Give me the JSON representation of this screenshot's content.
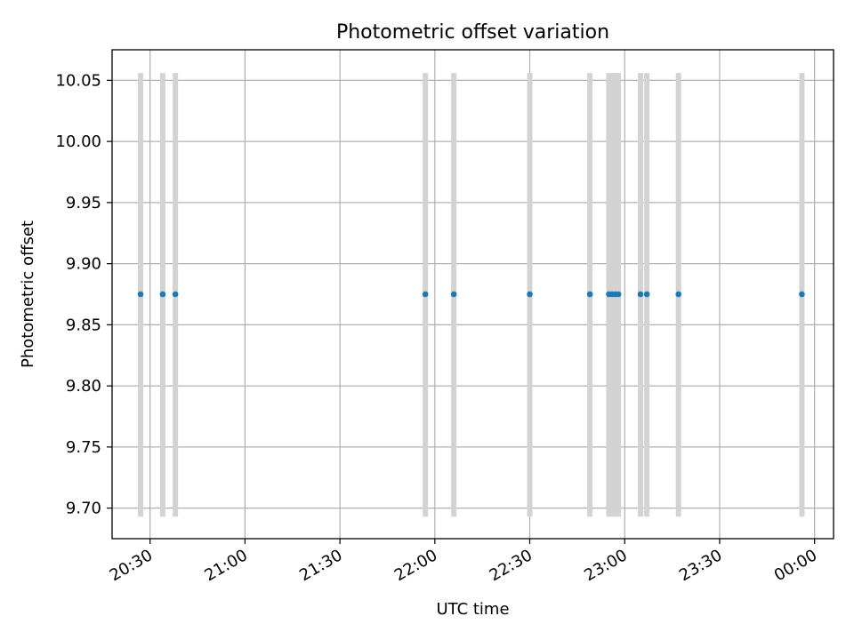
{
  "chart_data": {
    "type": "scatter",
    "title": "Photometric offset variation",
    "xlabel": "UTC time",
    "ylabel": "Photometric offset",
    "x_unit": "UTC time (HH:MM)",
    "xlim": [
      "20:18",
      "00:06"
    ],
    "ylim": [
      9.675,
      10.075
    ],
    "x_ticks": [
      "20:30",
      "21:00",
      "21:30",
      "22:00",
      "22:30",
      "23:00",
      "23:30",
      "00:00"
    ],
    "y_ticks": [
      9.7,
      9.75,
      9.8,
      9.85,
      9.9,
      9.95,
      10.0,
      10.05
    ],
    "y_tick_labels": [
      "9.70",
      "9.75",
      "9.80",
      "9.85",
      "9.90",
      "9.95",
      "10.00",
      "10.05"
    ],
    "grid": true,
    "x_tick_rotation_deg": 30,
    "series": [
      {
        "x": [
          "20:27",
          "20:34",
          "20:38",
          "21:57",
          "22:06",
          "22:30",
          "22:49",
          "22:55",
          "22:56",
          "22:57",
          "22:58",
          "23:05",
          "23:07",
          "23:17",
          "23:56"
        ],
        "y": [
          9.875,
          9.875,
          9.875,
          9.875,
          9.875,
          9.875,
          9.875,
          9.875,
          9.875,
          9.875,
          9.875,
          9.875,
          9.875,
          9.875,
          9.875
        ],
        "y_range": [
          [
            9.693,
            10.056
          ],
          [
            9.693,
            10.056
          ],
          [
            9.693,
            10.056
          ],
          [
            9.693,
            10.056
          ],
          [
            9.693,
            10.056
          ],
          [
            9.693,
            10.056
          ],
          [
            9.693,
            10.056
          ],
          [
            9.693,
            10.056
          ],
          [
            9.693,
            10.056
          ],
          [
            9.693,
            10.056
          ],
          [
            9.693,
            10.056
          ],
          [
            9.693,
            10.056
          ],
          [
            9.693,
            10.056
          ],
          [
            9.693,
            10.056
          ],
          [
            9.693,
            10.056
          ]
        ],
        "color": "#1f77b4",
        "band_color": "#d3d3d3"
      }
    ]
  }
}
